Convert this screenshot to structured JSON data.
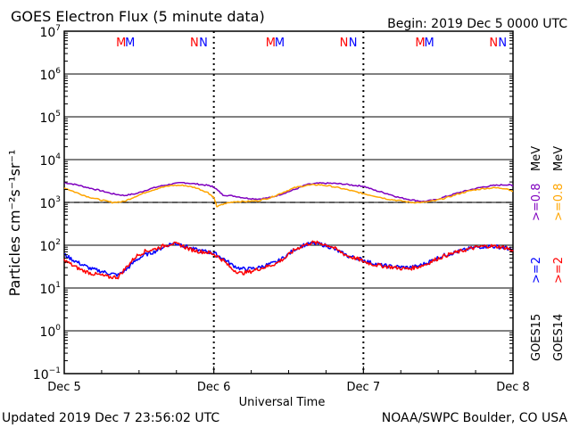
{
  "chart_data": {
    "type": "line",
    "title": "GOES Electron Flux (5 minute data)",
    "begin_label": "Begin: 2019 Dec 5 0000 UTC",
    "xlabel": "Universal Time",
    "ylabel": "Particles cm⁻²s⁻¹sr⁻¹",
    "x_unit": "days since 2019 Dec 5 0000 UTC",
    "xlim": [
      0,
      3
    ],
    "x_ticks": [
      {
        "x": 0,
        "label": "Dec 5"
      },
      {
        "x": 1,
        "label": "Dec 6"
      },
      {
        "x": 2,
        "label": "Dec 7"
      },
      {
        "x": 3,
        "label": "Dec 8"
      }
    ],
    "yscale": "log",
    "ylim_exponent": [
      -1,
      7
    ],
    "y_ticks": [
      {
        "exp": 7,
        "label": "10"
      },
      {
        "exp": 6,
        "label": "10"
      },
      {
        "exp": 5,
        "label": "10"
      },
      {
        "exp": 4,
        "label": "10"
      },
      {
        "exp": 3,
        "label": "10"
      },
      {
        "exp": 2,
        "label": "10"
      },
      {
        "exp": 1,
        "label": "10"
      },
      {
        "exp": 0,
        "label": "10"
      },
      {
        "exp": -1,
        "label": "10"
      }
    ],
    "y_tick_exponent_labels": [
      "7",
      "6",
      "5",
      "4",
      "3",
      "2",
      "1",
      "0",
      "−1"
    ],
    "threshold": {
      "value": 1000,
      "style": "dashed"
    },
    "markers": [
      {
        "x": 0.38,
        "label": "M",
        "color": "#ff0000"
      },
      {
        "x": 0.44,
        "label": "M",
        "color": "#0000ff"
      },
      {
        "x": 0.87,
        "label": "N",
        "color": "#ff0000"
      },
      {
        "x": 0.93,
        "label": "N",
        "color": "#0000ff"
      },
      {
        "x": 1.38,
        "label": "M",
        "color": "#ff0000"
      },
      {
        "x": 1.44,
        "label": "M",
        "color": "#0000ff"
      },
      {
        "x": 1.87,
        "label": "N",
        "color": "#ff0000"
      },
      {
        "x": 1.93,
        "label": "N",
        "color": "#0000ff"
      },
      {
        "x": 2.38,
        "label": "M",
        "color": "#ff0000"
      },
      {
        "x": 2.44,
        "label": "M",
        "color": "#0000ff"
      },
      {
        "x": 2.87,
        "label": "N",
        "color": "#ff0000"
      },
      {
        "x": 2.93,
        "label": "N",
        "color": "#0000ff"
      }
    ],
    "legend": {
      "placement": "right",
      "sat15": "GOES15",
      "sat14": "GOES14",
      "ge2_15": ">=2",
      "ge2_14": ">=2",
      "ge08_15": ">=0.8",
      "ge08_14": ">=0.8",
      "mev_15": "MeV",
      "mev_14": "MeV"
    },
    "series": [
      {
        "name": "GOES15 >=0.8 MeV",
        "color": "#7f00bf",
        "x": [
          0,
          0.08,
          0.16,
          0.24,
          0.32,
          0.4,
          0.48,
          0.56,
          0.64,
          0.72,
          0.8,
          0.88,
          0.96,
          1.0,
          1.06,
          1.14,
          1.22,
          1.3,
          1.38,
          1.46,
          1.54,
          1.62,
          1.7,
          1.78,
          1.86,
          1.94,
          2.0,
          2.08,
          2.16,
          2.24,
          2.32,
          2.4,
          2.48,
          2.56,
          2.64,
          2.72,
          2.8,
          2.88,
          2.96,
          3.0
        ],
        "y": [
          2900,
          2600,
          2200,
          1900,
          1600,
          1450,
          1600,
          2000,
          2400,
          2700,
          2900,
          2700,
          2500,
          2300,
          1500,
          1400,
          1250,
          1200,
          1300,
          1600,
          2000,
          2600,
          2800,
          2800,
          2700,
          2500,
          2400,
          1900,
          1600,
          1300,
          1150,
          1050,
          1150,
          1400,
          1700,
          2000,
          2300,
          2500,
          2600,
          2500
        ]
      },
      {
        "name": "GOES14 >=0.8 MeV",
        "color": "#ffa500",
        "x": [
          0,
          0.08,
          0.16,
          0.24,
          0.32,
          0.4,
          0.48,
          0.56,
          0.64,
          0.72,
          0.8,
          0.88,
          0.96,
          1.0,
          1.02,
          1.08,
          1.14,
          1.22,
          1.3,
          1.38,
          1.46,
          1.54,
          1.62,
          1.7,
          1.78,
          1.86,
          1.94,
          2.0,
          2.08,
          2.16,
          2.24,
          2.32,
          2.4,
          2.48,
          2.56,
          2.64,
          2.72,
          2.8,
          2.88,
          2.96,
          3.0
        ],
        "y": [
          2200,
          1700,
          1350,
          1150,
          1000,
          1050,
          1400,
          1800,
          2200,
          2500,
          2500,
          2200,
          1700,
          1300,
          800,
          950,
          1050,
          1050,
          1100,
          1300,
          1700,
          2200,
          2500,
          2600,
          2400,
          2100,
          1800,
          1600,
          1400,
          1200,
          1100,
          1000,
          1000,
          1100,
          1300,
          1600,
          1900,
          2100,
          2200,
          2100,
          1800
        ]
      },
      {
        "name": "GOES15 >=2 MeV",
        "color": "#0000ff",
        "x": [
          0,
          0.06,
          0.12,
          0.18,
          0.24,
          0.3,
          0.36,
          0.42,
          0.48,
          0.54,
          0.6,
          0.66,
          0.72,
          0.78,
          0.84,
          0.9,
          0.96,
          1.0,
          1.06,
          1.12,
          1.18,
          1.24,
          1.3,
          1.36,
          1.42,
          1.48,
          1.54,
          1.6,
          1.66,
          1.72,
          1.78,
          1.84,
          1.9,
          1.96,
          2.0,
          2.06,
          2.12,
          2.18,
          2.24,
          2.3,
          2.36,
          2.42,
          2.48,
          2.54,
          2.6,
          2.66,
          2.72,
          2.78,
          2.84,
          2.9,
          2.96,
          3.0
        ],
        "y": [
          60,
          45,
          35,
          28,
          25,
          22,
          20,
          28,
          45,
          60,
          70,
          90,
          110,
          105,
          85,
          75,
          70,
          65,
          50,
          35,
          28,
          28,
          30,
          35,
          40,
          55,
          80,
          100,
          110,
          105,
          90,
          70,
          55,
          50,
          45,
          38,
          34,
          32,
          31,
          30,
          32,
          38,
          48,
          58,
          66,
          75,
          85,
          92,
          95,
          92,
          85,
          75
        ]
      },
      {
        "name": "GOES14 >=2 MeV",
        "color": "#ff0000",
        "x": [
          0,
          0.06,
          0.12,
          0.18,
          0.24,
          0.3,
          0.36,
          0.42,
          0.48,
          0.54,
          0.6,
          0.66,
          0.72,
          0.78,
          0.84,
          0.9,
          0.96,
          1.0,
          1.06,
          1.12,
          1.18,
          1.24,
          1.3,
          1.36,
          1.42,
          1.48,
          1.54,
          1.6,
          1.66,
          1.72,
          1.78,
          1.84,
          1.9,
          1.96,
          2.0,
          2.06,
          2.12,
          2.18,
          2.24,
          2.3,
          2.36,
          2.42,
          2.48,
          2.54,
          2.6,
          2.66,
          2.72,
          2.78,
          2.84,
          2.9,
          2.96,
          3.0
        ],
        "y": [
          45,
          33,
          26,
          22,
          20,
          18,
          18,
          32,
          55,
          72,
          80,
          95,
          110,
          100,
          80,
          72,
          68,
          62,
          45,
          28,
          22,
          24,
          28,
          32,
          38,
          52,
          78,
          100,
          115,
          110,
          95,
          72,
          55,
          48,
          42,
          36,
          33,
          31,
          29,
          28,
          31,
          36,
          46,
          56,
          65,
          74,
          84,
          92,
          96,
          93,
          86,
          72
        ]
      }
    ]
  },
  "footer": {
    "updated": "Updated 2019 Dec  7 23:56:02 UTC",
    "credit": "NOAA/SWPC Boulder, CO USA"
  }
}
